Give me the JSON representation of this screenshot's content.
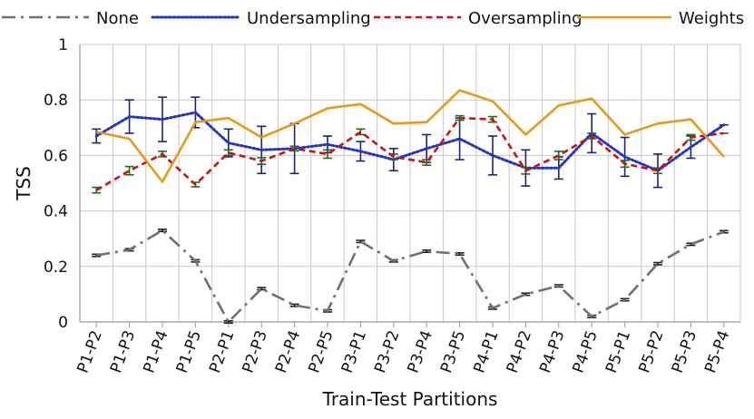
{
  "chart_data": {
    "type": "line",
    "title": "",
    "xlabel": "Train-Test Partitions",
    "ylabel": "TSS",
    "ylim": [
      0,
      1
    ],
    "yticks": [
      "0",
      "0.2",
      "0.4",
      "0.6",
      "0.8",
      "1"
    ],
    "grid": true,
    "legend_position": "top",
    "categories": [
      "P1-P2",
      "P1-P3",
      "P1-P4",
      "P1-P5",
      "P2-P1",
      "P2-P3",
      "P2-P4",
      "P2-P5",
      "P3-P1",
      "P3-P2",
      "P3-P4",
      "P3-P5",
      "P4-P1",
      "P4-P2",
      "P4-P3",
      "P4-P5",
      "P5-P1",
      "P5-P2",
      "P5-P3",
      "P5-P4"
    ],
    "series": [
      {
        "name": "None",
        "color": "#707070",
        "style": "dashdot",
        "values": [
          0.24,
          0.26,
          0.33,
          0.22,
          0.0,
          0.12,
          0.06,
          0.04,
          0.29,
          0.22,
          0.255,
          0.245,
          0.05,
          0.1,
          0.13,
          0.02,
          0.08,
          0.21,
          0.28,
          0.325
        ],
        "err": [
          0.004,
          0.004,
          0.004,
          0.004,
          0.004,
          0.004,
          0.004,
          0.004,
          0.004,
          0.004,
          0.004,
          0.004,
          0.004,
          0.004,
          0.004,
          0.004,
          0.004,
          0.004,
          0.004,
          0.004
        ]
      },
      {
        "name": "Undersampling",
        "color": "#2233cc",
        "style": "dotted",
        "values": [
          0.67,
          0.74,
          0.73,
          0.755,
          0.645,
          0.62,
          0.625,
          0.64,
          0.615,
          0.585,
          0.625,
          0.66,
          0.6,
          0.555,
          0.555,
          0.68,
          0.595,
          0.545,
          0.63,
          0.71
        ],
        "err": [
          0.025,
          0.06,
          0.08,
          0.055,
          0.05,
          0.085,
          0.09,
          0.03,
          0.035,
          0.04,
          0.05,
          0.075,
          0.07,
          0.065,
          0.04,
          0.07,
          0.07,
          0.06,
          0.04,
          0.0
        ]
      },
      {
        "name": "Oversampling",
        "color": "#cc1111",
        "style": "dashed",
        "values": [
          0.475,
          0.545,
          0.605,
          0.495,
          0.61,
          0.58,
          0.625,
          0.605,
          0.685,
          0.595,
          0.575,
          0.735,
          0.73,
          0.545,
          0.6,
          0.67,
          0.57,
          0.545,
          0.665,
          0.68
        ],
        "err": [
          0.01,
          0.015,
          0.01,
          0.008,
          0.01,
          0.012,
          0.008,
          0.015,
          0.01,
          0.01,
          0.01,
          0.008,
          0.01,
          0.012,
          0.015,
          0.01,
          0.012,
          0.01,
          0.01,
          0.0
        ]
      },
      {
        "name": "Weights",
        "color": "#e69a1a",
        "style": "solid",
        "values": [
          0.685,
          0.66,
          0.505,
          0.72,
          0.735,
          0.665,
          0.715,
          0.77,
          0.785,
          0.715,
          0.72,
          0.835,
          0.795,
          0.675,
          0.78,
          0.805,
          0.675,
          0.715,
          0.73,
          0.595
        ],
        "err": []
      }
    ]
  }
}
